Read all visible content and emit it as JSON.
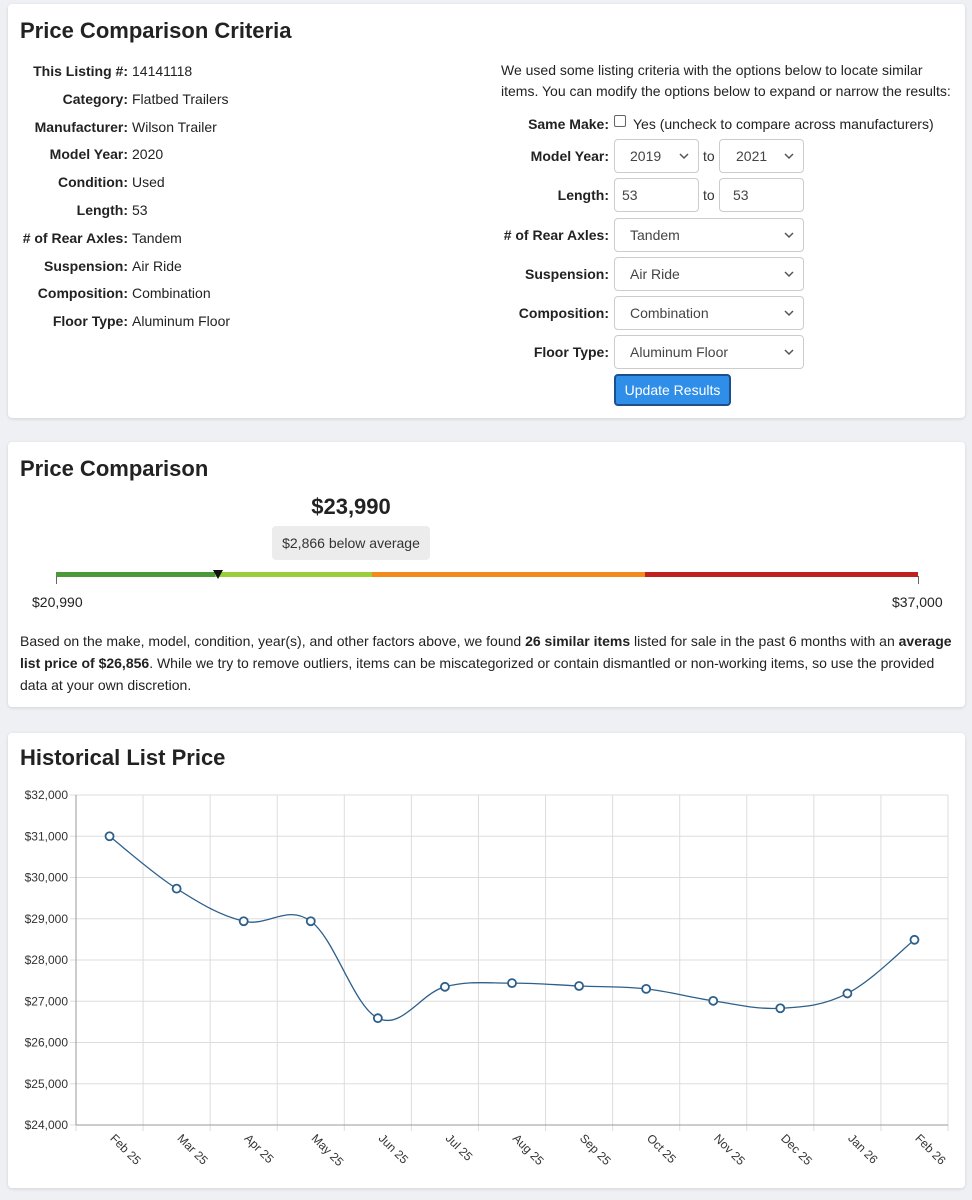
{
  "criteria": {
    "title": "Price Comparison Criteria",
    "specs": [
      {
        "label": "This Listing #:",
        "value": "14141118"
      },
      {
        "label": "Category:",
        "value": "Flatbed Trailers"
      },
      {
        "label": "Manufacturer:",
        "value": "Wilson Trailer"
      },
      {
        "label": "Model Year:",
        "value": "2020"
      },
      {
        "label": "Condition:",
        "value": "Used"
      },
      {
        "label": "Length:",
        "value": "53"
      },
      {
        "label": "# of Rear Axles:",
        "value": "Tandem"
      },
      {
        "label": "Suspension:",
        "value": "Air Ride"
      },
      {
        "label": "Composition:",
        "value": "Combination"
      },
      {
        "label": "Floor Type:",
        "value": "Aluminum Floor"
      }
    ],
    "intro": "We used some listing criteria with the options below to locate similar items. You can modify the options below to expand or narrow the results:",
    "filters": {
      "same_make": {
        "label": "Same Make:",
        "checkbox_text": "Yes (uncheck to compare across manufacturers)",
        "checked": false
      },
      "model_year": {
        "label": "Model Year:",
        "from": "2019",
        "to_text": "to",
        "to": "2021"
      },
      "length": {
        "label": "Length:",
        "from": "53",
        "to_text": "to",
        "to": "53"
      },
      "rear_axles": {
        "label": "# of Rear Axles:",
        "value": "Tandem"
      },
      "suspension": {
        "label": "Suspension:",
        "value": "Air Ride"
      },
      "composition": {
        "label": "Composition:",
        "value": "Combination"
      },
      "floor_type": {
        "label": "Floor Type:",
        "value": "Aluminum Floor"
      }
    },
    "update_button": "Update Results"
  },
  "comparison": {
    "title": "Price Comparison",
    "price": "$23,990",
    "badge": "$2,866 below average",
    "range_min": "$20,990",
    "range_max": "$37,000",
    "range_min_value": 20990,
    "range_max_value": 37000,
    "listing_value": 23990,
    "bar_colors": [
      "#4a9a3a",
      "#9bcf3a",
      "#f28a1c",
      "#c0211f"
    ],
    "summary_pre": "Based on the make, model, condition, year(s), and other factors above, we found ",
    "summary_count": "26 similar items",
    "summary_mid": " listed for sale in the past 6 months with an ",
    "summary_avg": "average list price of $26,856",
    "summary_post": ". While we try to remove outliers, items can be miscategorized or contain dismantled or non-working items, so use the provided data at your own discretion."
  },
  "history": {
    "title": "Historical List Price"
  },
  "chart_data": {
    "type": "line",
    "categories": [
      "Feb 25",
      "Mar 25",
      "Apr 25",
      "May 25",
      "Jun 25",
      "Jul 25",
      "Aug 25",
      "Sep 25",
      "Oct 25",
      "Nov 25",
      "Dec 25",
      "Jan 26",
      "Feb 26"
    ],
    "values": [
      31000,
      29730,
      28940,
      28940,
      26590,
      27350,
      27440,
      27370,
      27300,
      27010,
      26830,
      27190,
      28490
    ],
    "ylim": [
      24000,
      32000
    ],
    "yticks": [
      "$24,000",
      "$25,000",
      "$26,000",
      "$27,000",
      "$28,000",
      "$29,000",
      "$30,000",
      "$31,000",
      "$32,000"
    ],
    "grid": true,
    "line_color": "#2c5f8a"
  }
}
